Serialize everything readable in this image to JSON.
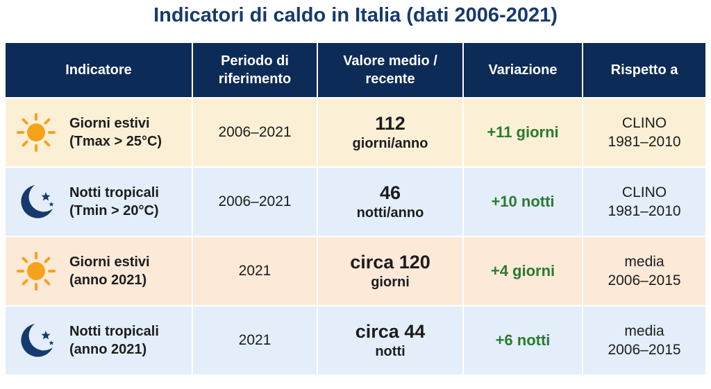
{
  "title": "Indicatori di caldo in Italia (dati 2006-2021)",
  "table": {
    "headers": [
      [
        "Indicatore"
      ],
      [
        "Periodo di",
        "riferimento"
      ],
      [
        "Valore medio /",
        "recente"
      ],
      [
        "Variazione"
      ],
      [
        "Rispetto a"
      ]
    ],
    "rows": [
      {
        "indicator": [
          "Giorni estivi",
          "(Tmax > 25°C)"
        ],
        "period": "2006–2021",
        "value": [
          "112",
          "giorni/anno"
        ],
        "change": "+11 giorni",
        "reference": [
          "CLINO",
          "1981–2010"
        ]
      },
      {
        "indicator": [
          "Notti tropicali",
          "(Tmin > 20°C)"
        ],
        "period": "2006–2021",
        "value": [
          "46",
          "notti/anno"
        ],
        "change": "+10 notti",
        "reference": [
          "CLINO",
          "1981–2010"
        ]
      },
      {
        "indicator": [
          "Giorni estivi",
          "(anno 2021)"
        ],
        "period": "2021",
        "value": [
          "circa 120",
          "giorni"
        ],
        "change": "+4 giorni",
        "reference": [
          "media",
          "2006–2015"
        ]
      },
      {
        "indicator": [
          "Notti tropicali",
          "(anno 2021)"
        ],
        "period": "2021",
        "value": [
          "circa 44",
          "notti"
        ],
        "change": "+6 notti",
        "reference": [
          "media",
          "2006–2015"
        ]
      }
    ]
  }
}
